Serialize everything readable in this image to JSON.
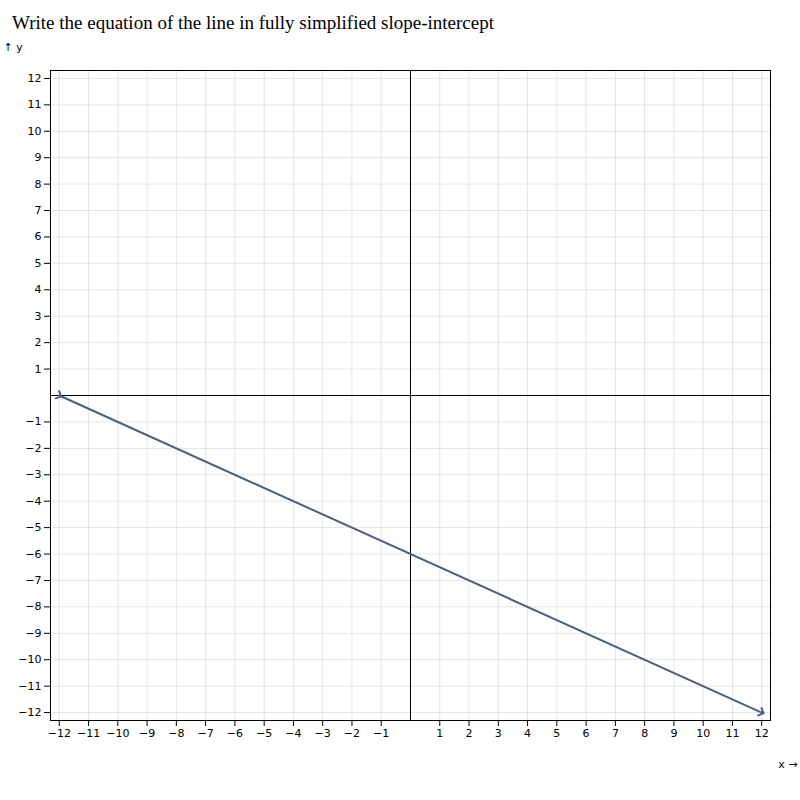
{
  "chart_data": {
    "type": "line",
    "title": "Write the equation of the line in fully simplified slope-intercept",
    "x_label": "x",
    "y_label": "y",
    "x": [
      -12,
      12
    ],
    "values": [
      0,
      -12
    ],
    "color": "#4a6080",
    "marker": "arrow",
    "xlim": [
      -12.3,
      12.3
    ],
    "ylim": [
      -12.3,
      12.3
    ],
    "xticks": [
      {
        "value": -12,
        "label": "−12"
      },
      {
        "value": -11,
        "label": "−11"
      },
      {
        "value": -10,
        "label": "−10"
      },
      {
        "value": -9,
        "label": "−9"
      },
      {
        "value": -8,
        "label": "−8"
      },
      {
        "value": -7,
        "label": "−7"
      },
      {
        "value": -6,
        "label": "−6"
      },
      {
        "value": -5,
        "label": "−5"
      },
      {
        "value": -4,
        "label": "−4"
      },
      {
        "value": -3,
        "label": "−3"
      },
      {
        "value": -2,
        "label": "−2"
      },
      {
        "value": -1,
        "label": "−1"
      },
      1,
      2,
      3,
      4,
      5,
      6,
      7,
      8,
      9,
      10,
      11,
      12
    ],
    "yticks": [
      {
        "value": -12,
        "label": "−12"
      },
      {
        "value": -11,
        "label": "−11"
      },
      {
        "value": -10,
        "label": "−10"
      },
      {
        "value": -9,
        "label": "−9"
      },
      {
        "value": -8,
        "label": "−8"
      },
      {
        "value": -7,
        "label": "−7"
      },
      {
        "value": -6,
        "label": "−6"
      },
      {
        "value": -5,
        "label": "−5"
      },
      {
        "value": -4,
        "label": "−4"
      },
      {
        "value": -3,
        "label": "−3"
      },
      {
        "value": -2,
        "label": "−2"
      },
      {
        "value": -1,
        "label": "−1"
      },
      1,
      2,
      3,
      4,
      5,
      6,
      7,
      8,
      9,
      10,
      11,
      12
    ],
    "grid": true
  }
}
